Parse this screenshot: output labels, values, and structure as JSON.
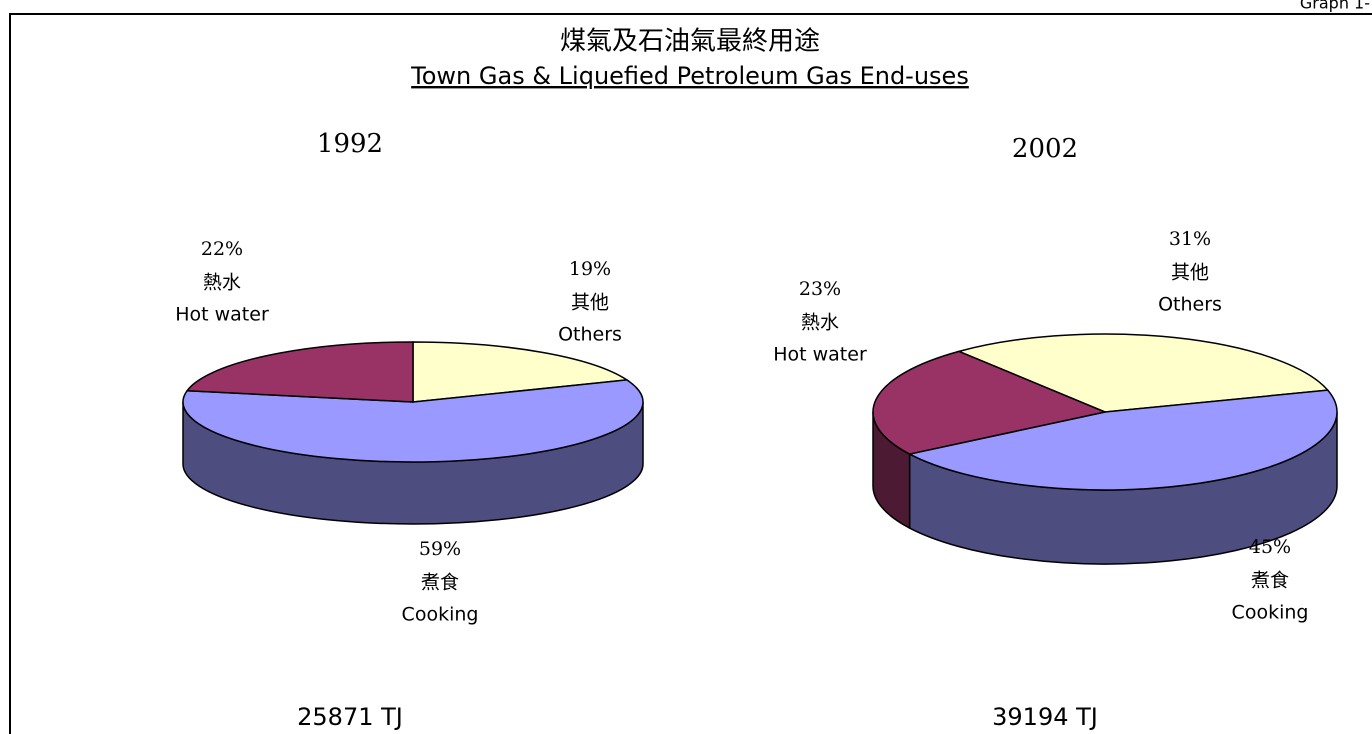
{
  "page_label": "Graph 1-",
  "title": "煤氣及石油氣最終用途",
  "subtitle": "Town Gas & Liquefied Petroleum Gas End-uses",
  "chart_data": [
    {
      "type": "pie",
      "title": "1992",
      "categories": [
        "其他",
        "煮食",
        "熱水"
      ],
      "categories_en": [
        "Others",
        "Cooking",
        "Hot water"
      ],
      "values": [
        19,
        59,
        22
      ],
      "value_labels": [
        "19%",
        "59%",
        "22%"
      ],
      "colors": [
        "#ffffcc",
        "#9999ff",
        "#993366"
      ],
      "annotation": "25871 TJ"
    },
    {
      "type": "pie",
      "title": "2002",
      "categories": [
        "其他",
        "煮食",
        "熱水"
      ],
      "categories_en": [
        "Others",
        "Cooking",
        "Hot water"
      ],
      "values": [
        31,
        45,
        23
      ],
      "value_labels": [
        "31%",
        "45%",
        "23%"
      ],
      "colors": [
        "#ffffcc",
        "#9999ff",
        "#993366"
      ],
      "annotation": "39194 TJ"
    }
  ]
}
